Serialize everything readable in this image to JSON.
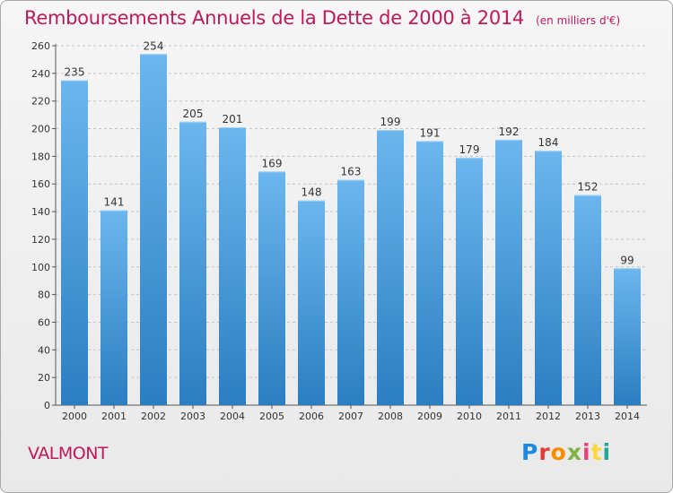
{
  "title": "Remboursements Annuels de la Dette de 2000 à 2014",
  "unit": "(en milliers d'€)",
  "commune": "VALMONT",
  "logo": {
    "text": "Proxiti",
    "letters": [
      "P",
      "r",
      "o",
      "x",
      "i",
      "t",
      "i"
    ],
    "colors": [
      "#1e88e5",
      "#e53935",
      "#fb8c00",
      "#7cb342",
      "#ec407a",
      "#fdd835",
      "#26a69a"
    ]
  },
  "colors": {
    "bar_top": "#6cb6ee",
    "bar_bottom": "#2b7ec0",
    "title": "#c2185b"
  },
  "chart_data": {
    "type": "bar",
    "categories": [
      "2000",
      "2001",
      "2002",
      "2003",
      "2004",
      "2005",
      "2006",
      "2007",
      "2008",
      "2009",
      "2010",
      "2011",
      "2012",
      "2013",
      "2014"
    ],
    "values": [
      235,
      141,
      254,
      205,
      201,
      169,
      148,
      163,
      199,
      191,
      179,
      192,
      184,
      152,
      99
    ],
    "ylim": [
      0,
      260
    ],
    "yticks": [
      0,
      20,
      40,
      60,
      80,
      100,
      120,
      140,
      160,
      180,
      200,
      220,
      240,
      260
    ],
    "grid": true,
    "data_labels": true
  }
}
